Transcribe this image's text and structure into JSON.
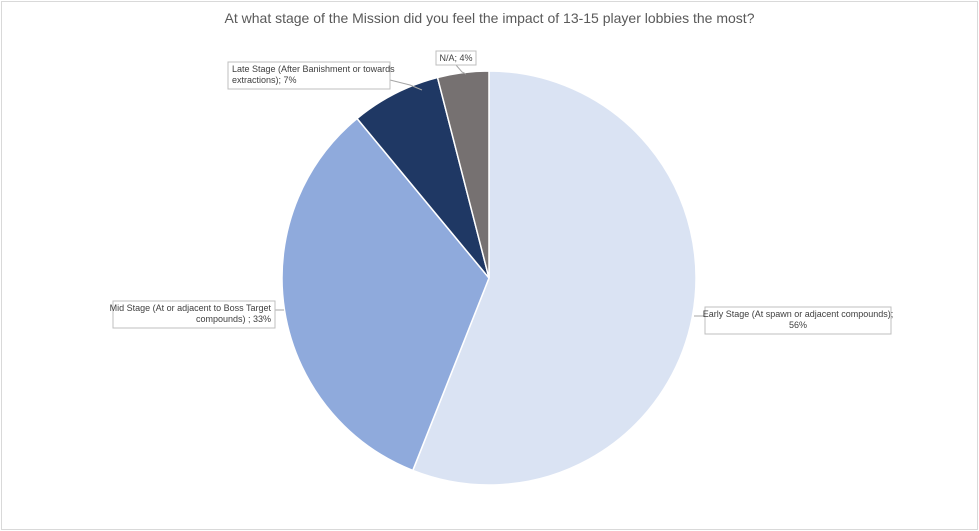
{
  "chart_data": {
    "type": "pie",
    "title": "At what stage of the Mission did you feel the impact of 13-15 player lobbies the most?",
    "slices": [
      {
        "label": "Early Stage (At spawn or adjacent compounds)",
        "value": 56,
        "data_label_lines": [
          "Early Stage (At spawn or adjacent compounds);",
          "56%"
        ],
        "color": "#dae3f3"
      },
      {
        "label": "Mid Stage (At or adjacent to Boss Target compounds)",
        "value": 33,
        "data_label_lines": [
          "Mid Stage (At or adjacent to Boss Target",
          "compounds) ; 33%"
        ],
        "color": "#8faadc"
      },
      {
        "label": "Late Stage (After Banishment or towards extractions)",
        "value": 7,
        "data_label_lines": [
          "Late Stage (After Banishment or towards",
          "extractions); 7%"
        ],
        "color": "#1f3864"
      },
      {
        "label": "N/A",
        "value": 4,
        "data_label_lines": [
          "N/A; 4%"
        ],
        "color": "#767171"
      }
    ],
    "start_angle": "12 o'clock",
    "direction": "clockwise",
    "legend": "none"
  }
}
